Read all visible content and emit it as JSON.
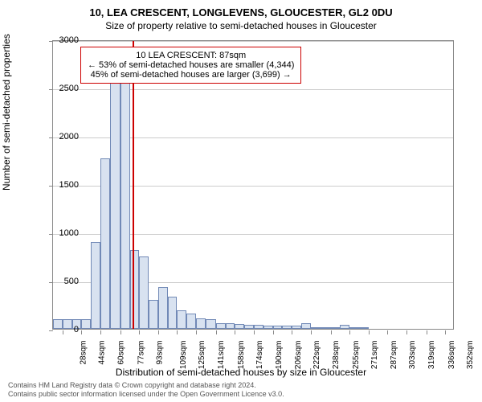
{
  "title": "10, LEA CRESCENT, LONGLEVENS, GLOUCESTER, GL2 0DU",
  "subtitle": "Size of property relative to semi-detached houses in Gloucester",
  "y_axis_label": "Number of semi-detached properties",
  "x_axis_label": "Distribution of semi-detached houses by size in Gloucester",
  "info_box": {
    "line1": "10 LEA CRESCENT: 87sqm",
    "line2": "← 53% of semi-detached houses are smaller (4,344)",
    "line3": "45% of semi-detached houses are larger (3,699) →"
  },
  "footer": {
    "line1": "Contains HM Land Registry data © Crown copyright and database right 2024.",
    "line2": "Contains public sector information licensed under the Open Government Licence v3.0."
  },
  "chart": {
    "type": "histogram",
    "bar_fill": "#d8e2f0",
    "bar_stroke": "#7189b6",
    "marker_color": "#cc0000",
    "marker_x_sqm": 87,
    "background": "#ffffff",
    "grid_color": "#cccccc",
    "ylim": [
      0,
      3000
    ],
    "ytick_step": 500,
    "x_min": 20,
    "x_max": 360,
    "x_tick_labels": [
      "28sqm",
      "44sqm",
      "60sqm",
      "77sqm",
      "93sqm",
      "109sqm",
      "125sqm",
      "141sqm",
      "158sqm",
      "174sqm",
      "190sqm",
      "206sqm",
      "222sqm",
      "238sqm",
      "255sqm",
      "271sqm",
      "287sqm",
      "303sqm",
      "319sqm",
      "336sqm",
      "352sqm"
    ],
    "x_tick_positions": [
      28,
      44,
      60,
      77,
      93,
      109,
      125,
      141,
      158,
      174,
      190,
      206,
      222,
      238,
      255,
      271,
      287,
      303,
      319,
      336,
      352
    ],
    "bars": [
      {
        "x": 20,
        "w": 8,
        "value": 100
      },
      {
        "x": 28,
        "w": 8,
        "value": 100
      },
      {
        "x": 36,
        "w": 8,
        "value": 100
      },
      {
        "x": 44,
        "w": 8,
        "value": 100
      },
      {
        "x": 52,
        "w": 8,
        "value": 900
      },
      {
        "x": 60,
        "w": 8,
        "value": 1770
      },
      {
        "x": 68,
        "w": 9,
        "value": 2620
      },
      {
        "x": 77,
        "w": 8,
        "value": 2580
      },
      {
        "x": 85,
        "w": 8,
        "value": 820
      },
      {
        "x": 93,
        "w": 8,
        "value": 750
      },
      {
        "x": 101,
        "w": 8,
        "value": 300
      },
      {
        "x": 109,
        "w": 8,
        "value": 430
      },
      {
        "x": 117,
        "w": 8,
        "value": 330
      },
      {
        "x": 125,
        "w": 8,
        "value": 190
      },
      {
        "x": 133,
        "w": 8,
        "value": 160
      },
      {
        "x": 141,
        "w": 8,
        "value": 110
      },
      {
        "x": 149,
        "w": 9,
        "value": 100
      },
      {
        "x": 158,
        "w": 8,
        "value": 60
      },
      {
        "x": 166,
        "w": 8,
        "value": 60
      },
      {
        "x": 174,
        "w": 8,
        "value": 50
      },
      {
        "x": 182,
        "w": 8,
        "value": 40
      },
      {
        "x": 190,
        "w": 8,
        "value": 40
      },
      {
        "x": 198,
        "w": 8,
        "value": 30
      },
      {
        "x": 206,
        "w": 8,
        "value": 30
      },
      {
        "x": 214,
        "w": 8,
        "value": 30
      },
      {
        "x": 222,
        "w": 8,
        "value": 30
      },
      {
        "x": 230,
        "w": 8,
        "value": 60
      },
      {
        "x": 238,
        "w": 8,
        "value": 15
      },
      {
        "x": 246,
        "w": 9,
        "value": 15
      },
      {
        "x": 255,
        "w": 8,
        "value": 15
      },
      {
        "x": 263,
        "w": 8,
        "value": 40
      },
      {
        "x": 271,
        "w": 8,
        "value": 15
      },
      {
        "x": 279,
        "w": 8,
        "value": 15
      }
    ]
  }
}
